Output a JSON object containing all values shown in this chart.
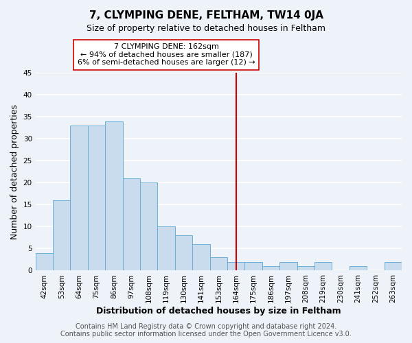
{
  "title": "7, CLYMPING DENE, FELTHAM, TW14 0JA",
  "subtitle": "Size of property relative to detached houses in Feltham",
  "xlabel": "Distribution of detached houses by size in Feltham",
  "ylabel": "Number of detached properties",
  "bar_labels": [
    "42sqm",
    "53sqm",
    "64sqm",
    "75sqm",
    "86sqm",
    "97sqm",
    "108sqm",
    "119sqm",
    "130sqm",
    "141sqm",
    "153sqm",
    "164sqm",
    "175sqm",
    "186sqm",
    "197sqm",
    "208sqm",
    "219sqm",
    "230sqm",
    "241sqm",
    "252sqm",
    "263sqm"
  ],
  "bar_values": [
    4,
    16,
    33,
    33,
    34,
    21,
    20,
    10,
    8,
    6,
    3,
    2,
    2,
    1,
    2,
    1,
    2,
    0,
    1,
    0,
    2
  ],
  "bar_color": "#c9dcee",
  "bar_edge_color": "#6aaed6",
  "vline_x_index": 11,
  "vline_color": "#cc0000",
  "annotation_title": "7 CLYMPING DENE: 162sqm",
  "annotation_line1": "← 94% of detached houses are smaller (187)",
  "annotation_line2": "6% of semi-detached houses are larger (12) →",
  "annotation_box_color": "#ffffff",
  "annotation_box_edge": "#cc0000",
  "ylim": [
    0,
    45
  ],
  "yticks": [
    0,
    5,
    10,
    15,
    20,
    25,
    30,
    35,
    40,
    45
  ],
  "footer1": "Contains HM Land Registry data © Crown copyright and database right 2024.",
  "footer2": "Contains public sector information licensed under the Open Government Licence v3.0.",
  "background_color": "#eef2f9",
  "grid_color": "#ffffff",
  "title_fontsize": 11,
  "subtitle_fontsize": 9,
  "axis_label_fontsize": 9,
  "tick_fontsize": 7.5,
  "footer_fontsize": 7,
  "annotation_fontsize": 8
}
